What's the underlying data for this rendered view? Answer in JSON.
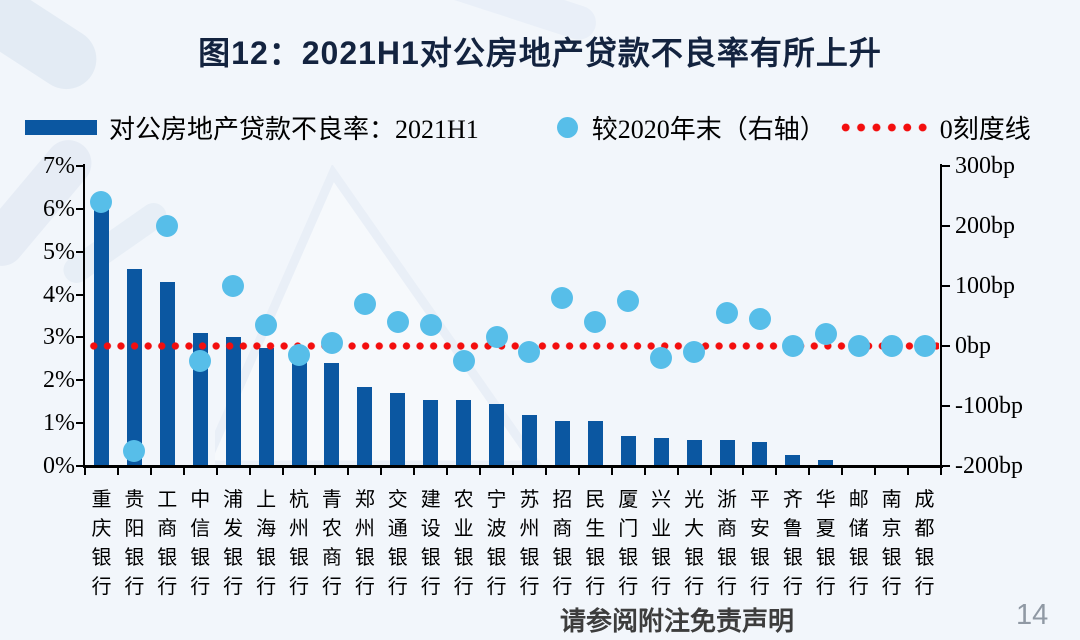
{
  "page": {
    "title": "图12：2021H1对公房地产贷款不良率有所上升",
    "footer_disclaimer": "请参阅附注免责声明",
    "page_number": "14"
  },
  "legend": {
    "bar_label": "对公房地产贷款不良率：2021H1",
    "dot_label": "较2020年末（右轴）",
    "line_label": "0刻度线"
  },
  "chart_data": {
    "type": "bar",
    "title": "图12：2021H1对公房地产贷款不良率有所上升",
    "categories": [
      "重庆银行",
      "贵阳银行",
      "工商银行",
      "中信银行",
      "浦发银行",
      "上海银行",
      "杭州银行",
      "青农商行",
      "郑州银行",
      "交通银行",
      "建设银行",
      "农业银行",
      "宁波银行",
      "苏州银行",
      "招商银行",
      "民生银行",
      "厦门银行",
      "兴业银行",
      "光大银行",
      "浙商银行",
      "平安银行",
      "齐鲁银行",
      "华夏银行",
      "邮储银行",
      "南京银行",
      "成都银行"
    ],
    "series": [
      {
        "name": "对公房地产贷款不良率：2021H1",
        "type": "bar",
        "axis": "left",
        "unit": "%",
        "values": [
          6.0,
          4.6,
          4.3,
          3.1,
          3.0,
          2.75,
          2.45,
          2.4,
          1.85,
          1.7,
          1.55,
          1.55,
          1.45,
          1.2,
          1.05,
          1.05,
          0.7,
          0.65,
          0.6,
          0.6,
          0.55,
          0.25,
          0.15,
          0,
          0,
          0
        ]
      },
      {
        "name": "较2020年末（右轴）",
        "type": "scatter",
        "axis": "right",
        "unit": "bp",
        "values": [
          240,
          -175,
          200,
          -25,
          100,
          35,
          -15,
          5,
          70,
          40,
          35,
          -25,
          15,
          -10,
          80,
          40,
          75,
          -20,
          -10,
          55,
          45,
          0,
          20,
          0,
          0,
          0
        ]
      },
      {
        "name": "0刻度线",
        "type": "hline",
        "axis": "right",
        "value": 0
      }
    ],
    "left_axis": {
      "min": 0,
      "max": 7,
      "step": 1,
      "suffix": "%",
      "ticks": [
        "7%",
        "6%",
        "5%",
        "4%",
        "3%",
        "2%",
        "1%",
        "0%"
      ]
    },
    "right_axis": {
      "min": -200,
      "max": 300,
      "step": 100,
      "suffix": "bp",
      "ticks": [
        "300bp",
        "200bp",
        "100bp",
        "0bp",
        "-100bp",
        "-200bp"
      ]
    },
    "grid": false,
    "legend_position": "top",
    "colors": {
      "bar": "#0B57A1",
      "dot": "#57BEE9",
      "zero_line": "#F30E0E",
      "title": "#13233F",
      "background": "#F2F6FB"
    }
  }
}
